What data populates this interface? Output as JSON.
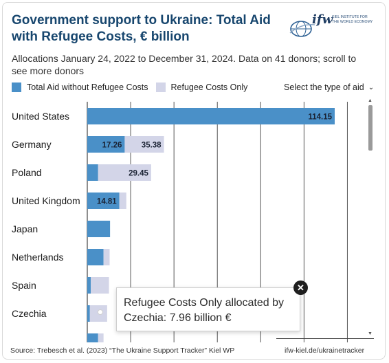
{
  "header": {
    "title": "Government support to Ukraine: Total Aid with Refugee Costs, € billion",
    "subtitle": "Allocations January 24, 2022 to December 31, 2024. Data on 41 donors; scroll to see more donors"
  },
  "logo": {
    "word": "ifw",
    "lines": [
      "KIEL INSTITUTE FOR",
      "THE WORLD ECONOMY"
    ]
  },
  "legend": {
    "items": [
      {
        "label": "Total Aid without Refugee Costs",
        "color": "#4a90c8"
      },
      {
        "label": "Refugee Costs Only",
        "color": "#d3d5e8"
      }
    ]
  },
  "selector": {
    "label": "Select the type of aid"
  },
  "chart_data": {
    "type": "bar",
    "orientation": "horizontal",
    "stacked": true,
    "categories": [
      "United States",
      "Germany",
      "Poland",
      "United Kingdom",
      "Japan",
      "Netherlands",
      "Spain",
      "Czechia",
      ""
    ],
    "series": [
      {
        "name": "Total Aid without Refugee Costs",
        "color": "#4a90c8",
        "values": [
          114.15,
          17.26,
          5.0,
          14.81,
          10.5,
          7.5,
          1.6,
          1.2,
          5.0
        ]
      },
      {
        "name": "Refugee Costs Only",
        "color": "#d3d5e8",
        "values": [
          0,
          18.12,
          24.45,
          3.2,
          0,
          2.8,
          8.4,
          7.96,
          2.5
        ]
      }
    ],
    "data_labels": [
      {
        "category": "United States",
        "text": "114.15"
      },
      {
        "category": "Germany",
        "text": "17.26"
      },
      {
        "category": "Germany",
        "text": "35.38"
      },
      {
        "category": "Poland",
        "text": "29.45"
      },
      {
        "category": "United Kingdom",
        "text": "14.81"
      }
    ],
    "xlim": [
      0,
      130
    ],
    "gridlines_at": [
      0,
      20,
      40,
      60,
      80,
      100,
      120
    ],
    "grid": true
  },
  "tooltip": {
    "text": "Refugee Costs Only allocated by Czechia: 7.96 billion €"
  },
  "footer": {
    "source": "Source: Trebesch et al. (2023) “The Ukraine Support Tracker” Kiel WP",
    "link": "ifw-kiel.de/ukrainetracker"
  }
}
